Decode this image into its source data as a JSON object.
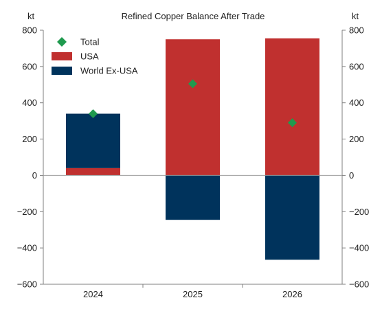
{
  "chart_data": {
    "type": "bar",
    "stacked": true,
    "title": "Refined Copper Balance After Trade",
    "left_axis_unit": "kt",
    "right_axis_unit": "kt",
    "categories": [
      "2024",
      "2025",
      "2026"
    ],
    "ylim": [
      -600,
      800
    ],
    "y_ticks": [
      800,
      600,
      400,
      200,
      0,
      -200,
      -400,
      -600
    ],
    "y_tick_labels": [
      "800",
      "600",
      "400",
      "200",
      "0",
      "−200",
      "−400",
      "−600"
    ],
    "grid": false,
    "legend_position": "top-left",
    "series": [
      {
        "name": "USA",
        "kind": "bar",
        "color": "#c0302f",
        "values": [
          40,
          750,
          755
        ]
      },
      {
        "name": "World Ex-USA",
        "kind": "bar",
        "color": "#00335c",
        "values": [
          300,
          -245,
          -465
        ]
      },
      {
        "name": "Total",
        "kind": "marker",
        "marker": "diamond",
        "color": "#1f9a4e",
        "values": [
          340,
          505,
          290
        ]
      }
    ],
    "legend_order": [
      "Total",
      "USA",
      "World Ex-USA"
    ],
    "axis_color": "#7f7f7f",
    "zero_line_color": "#9a9a9a"
  }
}
